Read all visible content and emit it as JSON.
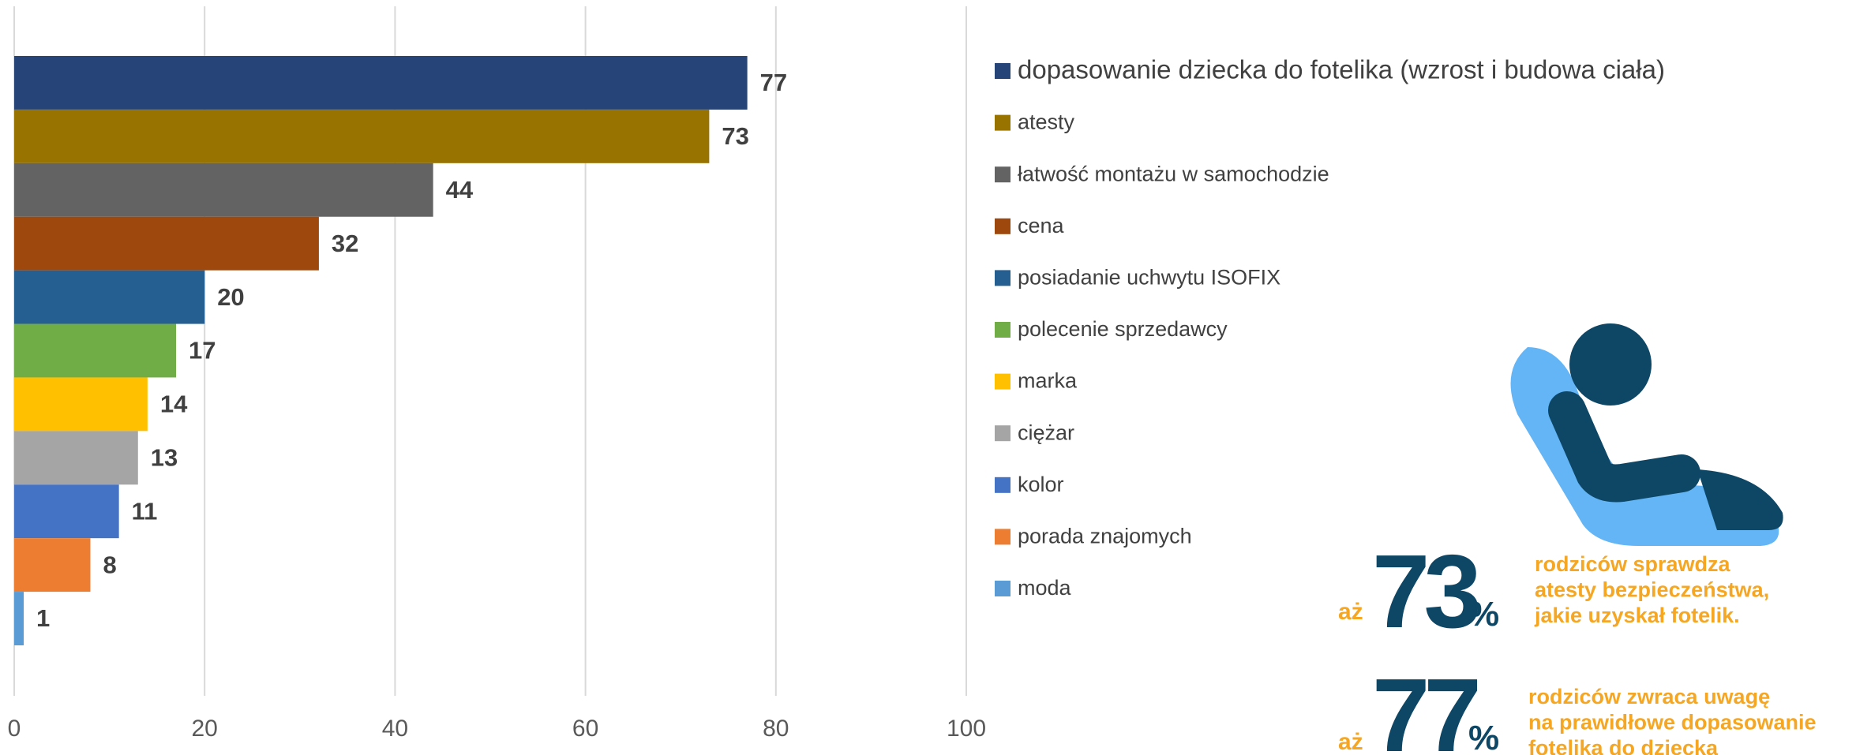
{
  "chart_data": {
    "type": "bar",
    "orientation": "horizontal",
    "categories": [
      "dopasowanie dziecka do fotelika (wzrost i budowa ciała)",
      "atesty",
      "łatwość montażu w samochodzie",
      "cena",
      "posiadanie uchwytu ISOFIX",
      "polecenie sprzedawcy",
      "marka",
      "ciężar",
      "kolor",
      "porada znajomych",
      "moda"
    ],
    "values": [
      77,
      73,
      44,
      32,
      20,
      17,
      14,
      13,
      11,
      8,
      1
    ],
    "colors": [
      "#264478",
      "#997300",
      "#636363",
      "#9e480e",
      "#255e91",
      "#70ad47",
      "#ffc000",
      "#a5a5a5",
      "#4472c4",
      "#ed7d31",
      "#5b9bd5"
    ],
    "xlim": [
      0,
      100
    ],
    "xticks": [
      0,
      20,
      40,
      60,
      80,
      100
    ],
    "grid": true,
    "legend": "right",
    "annotations": [
      {
        "prefix": "aż",
        "number": 73,
        "unit": "%",
        "lines": [
          "rodziców sprawdza",
          "atesty bezpieczeństwa,",
          "jakie uzyskał fotelik."
        ]
      },
      {
        "prefix": "aż",
        "number": 77,
        "unit": "%",
        "lines": [
          "rodziców zwraca uwagę",
          "na prawidłowe dopasowanie",
          "fotelika do dziecka"
        ]
      }
    ]
  }
}
